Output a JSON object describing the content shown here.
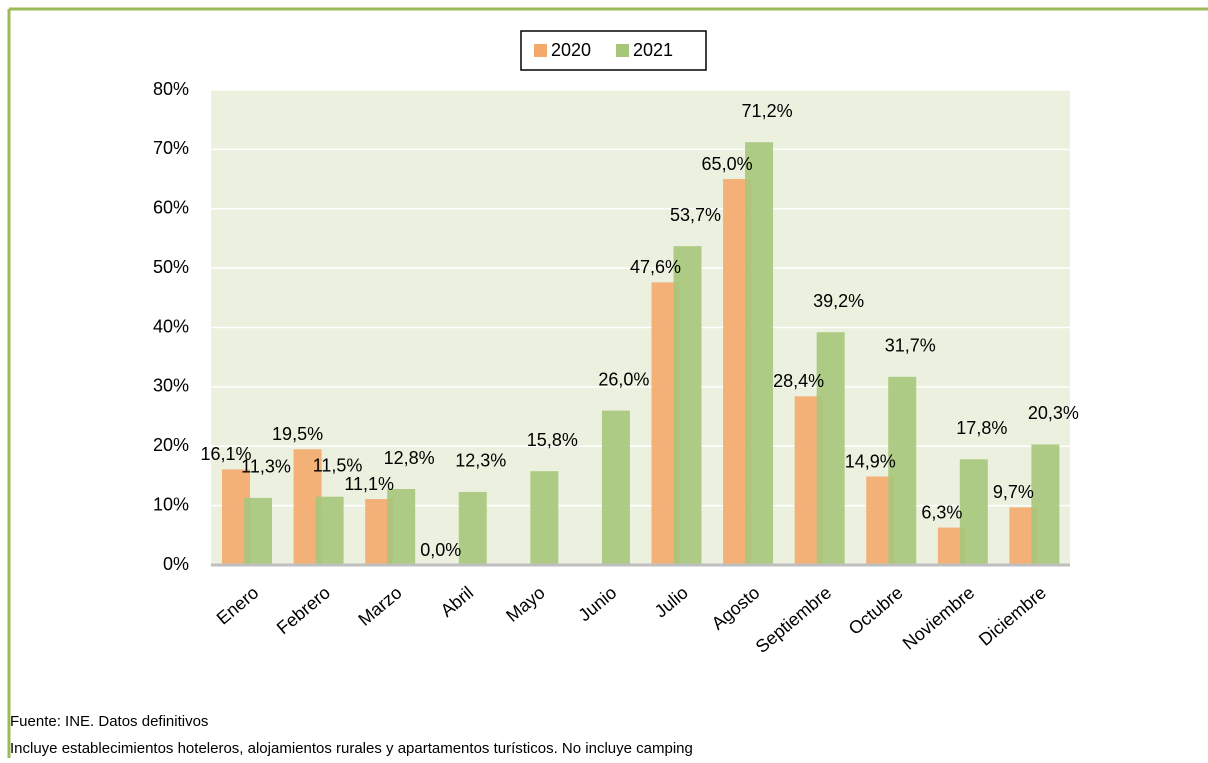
{
  "chart_data": {
    "type": "bar",
    "categories": [
      "Enero",
      "Febrero",
      "Marzo",
      "Abril",
      "Mayo",
      "Junio",
      "Julio",
      "Agosto",
      "Septiembre",
      "Octubre",
      "Noviembre",
      "Diciembre"
    ],
    "series": [
      {
        "name": "2020",
        "color": "#f4a96b",
        "values": [
          16.1,
          19.5,
          11.1,
          0.0,
          null,
          null,
          47.6,
          65.0,
          28.4,
          14.9,
          6.3,
          9.7
        ],
        "value_labels": [
          "16,1%",
          "19,5%",
          "11,1%",
          "0,0%",
          null,
          null,
          "47,6%",
          "65,0%",
          "28,4%",
          "14,9%",
          "6,3%",
          "9,7%"
        ]
      },
      {
        "name": "2021",
        "color": "#a6c67a",
        "values": [
          11.3,
          11.5,
          12.8,
          12.3,
          15.8,
          26.0,
          53.7,
          71.2,
          39.2,
          31.7,
          17.8,
          20.3
        ],
        "value_labels": [
          "11,3%",
          "11,5%",
          "12,8%",
          "12,3%",
          "15,8%",
          "26,0%",
          "53,7%",
          "71,2%",
          "39,2%",
          "31,7%",
          "17,8%",
          "20,3%"
        ]
      }
    ],
    "ylim": [
      0,
      80
    ],
    "yticks": [
      {
        "value": 0,
        "label": "0%"
      },
      {
        "value": 10,
        "label": "10%"
      },
      {
        "value": 20,
        "label": "20%"
      },
      {
        "value": 30,
        "label": "30%"
      },
      {
        "value": 40,
        "label": "40%"
      },
      {
        "value": 50,
        "label": "50%"
      },
      {
        "value": 60,
        "label": "60%"
      },
      {
        "value": 70,
        "label": "70%"
      },
      {
        "value": 80,
        "label": "80%"
      }
    ],
    "grid": true,
    "legend": "top",
    "source": "Fuente: INE. Datos definitivos",
    "note": "Incluye establecimientos hoteleros, alojamientos rurales y apartamentos turísticos. No incluye camping"
  }
}
